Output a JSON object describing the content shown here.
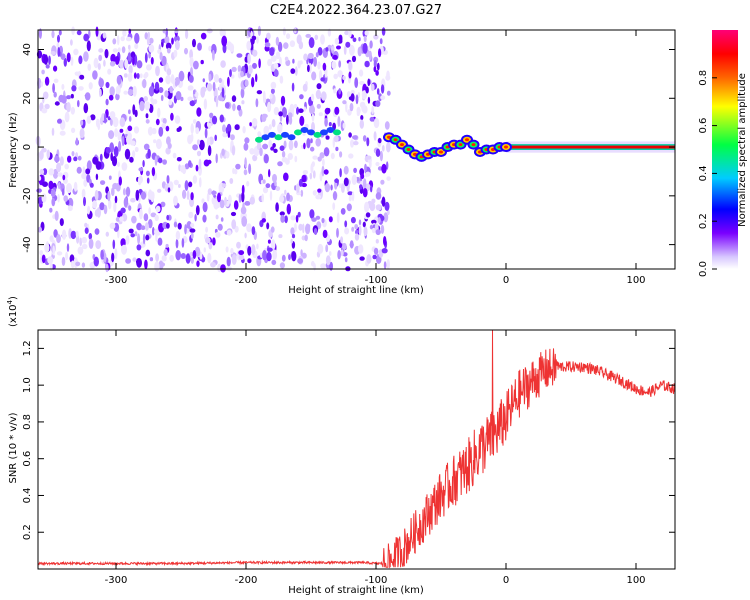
{
  "figure_title": "C2E4.2022.364.23.07.G27",
  "chart_data": [
    {
      "type": "heatmap",
      "xlabel": "Height of straight line (km)",
      "ylabel": "Frequency (Hz)",
      "xlim": [
        -360,
        130
      ],
      "ylim": [
        -50,
        48
      ],
      "xticks": [
        -300,
        -200,
        -100,
        0,
        100
      ],
      "yticks": [
        -40,
        -20,
        0,
        20,
        40
      ],
      "xtick_labels": [
        "-300",
        "-200",
        "-100",
        "0",
        "100"
      ],
      "ytick_labels": [
        "-40",
        "-20",
        "0",
        "20",
        "40"
      ],
      "colorbar": {
        "label": "Normalized spectral amplitude",
        "range": [
          0,
          1
        ],
        "ticks": [
          0.0,
          0.2,
          0.4,
          0.6,
          0.8
        ],
        "tick_labels": [
          "0.0",
          "0.2",
          "0.4",
          "0.6",
          "0.8"
        ]
      },
      "noise_region_x": [
        -360,
        -90
      ],
      "signal_track": {
        "x": [
          -90,
          -85,
          -80,
          -75,
          -70,
          -65,
          -60,
          -55,
          -50,
          -45,
          -40,
          -35,
          -30,
          -25,
          -20,
          -15,
          -10,
          -5,
          0,
          10,
          20,
          40,
          60,
          80,
          100,
          120,
          130
        ],
        "y": [
          4,
          3,
          1,
          -1,
          -3,
          -4,
          -3,
          -2,
          -2,
          0,
          1,
          1,
          3,
          1,
          -2,
          -1,
          -1,
          0,
          0,
          0,
          0,
          0,
          0,
          0,
          0,
          0,
          0
        ]
      },
      "faint_track": {
        "x": [
          -190,
          -185,
          -180,
          -175,
          -170,
          -165,
          -160,
          -155,
          -150,
          -145,
          -140,
          -135,
          -130
        ],
        "y": [
          3,
          4,
          5,
          4,
          5,
          4,
          6,
          7,
          6,
          5,
          6,
          7,
          6
        ]
      }
    },
    {
      "type": "line",
      "xlabel": "Height of straight line (km)",
      "ylabel": "SNR (10 * v/v)",
      "yscale_label": "(x10",
      "yscale_exp": "4",
      "yscale_suffix": ")",
      "xlim": [
        -360,
        130
      ],
      "ylim": [
        0,
        1.3
      ],
      "xticks": [
        -300,
        -200,
        -100,
        0,
        100
      ],
      "yticks": [
        0.2,
        0.4,
        0.6,
        0.8,
        1.0,
        1.2
      ],
      "xtick_labels": [
        "-300",
        "-200",
        "-100",
        "0",
        "100"
      ],
      "ytick_labels": [
        "0.2",
        "0.4",
        "0.6",
        "0.8",
        "1.0",
        "1.2"
      ],
      "series": [
        {
          "name": "SNR",
          "color": "#ee3333",
          "x": [
            -360,
            -300,
            -250,
            -200,
            -150,
            -110,
            -100,
            -95,
            -90,
            -80,
            -70,
            -60,
            -50,
            -40,
            -30,
            -20,
            -10,
            0,
            10,
            20,
            30,
            40,
            50,
            60,
            70,
            80,
            90,
            100,
            110,
            120,
            130
          ],
          "y": [
            0.03,
            0.03,
            0.03,
            0.035,
            0.035,
            0.035,
            0.03,
            0.03,
            0.04,
            0.1,
            0.2,
            0.3,
            0.4,
            0.48,
            0.55,
            0.65,
            0.72,
            0.82,
            0.95,
            1.02,
            1.08,
            1.1,
            1.1,
            1.1,
            1.08,
            1.05,
            1.02,
            0.98,
            0.96,
            1.0,
            0.98
          ]
        }
      ],
      "spike": {
        "x": -10.5,
        "y": 1.3
      }
    }
  ]
}
